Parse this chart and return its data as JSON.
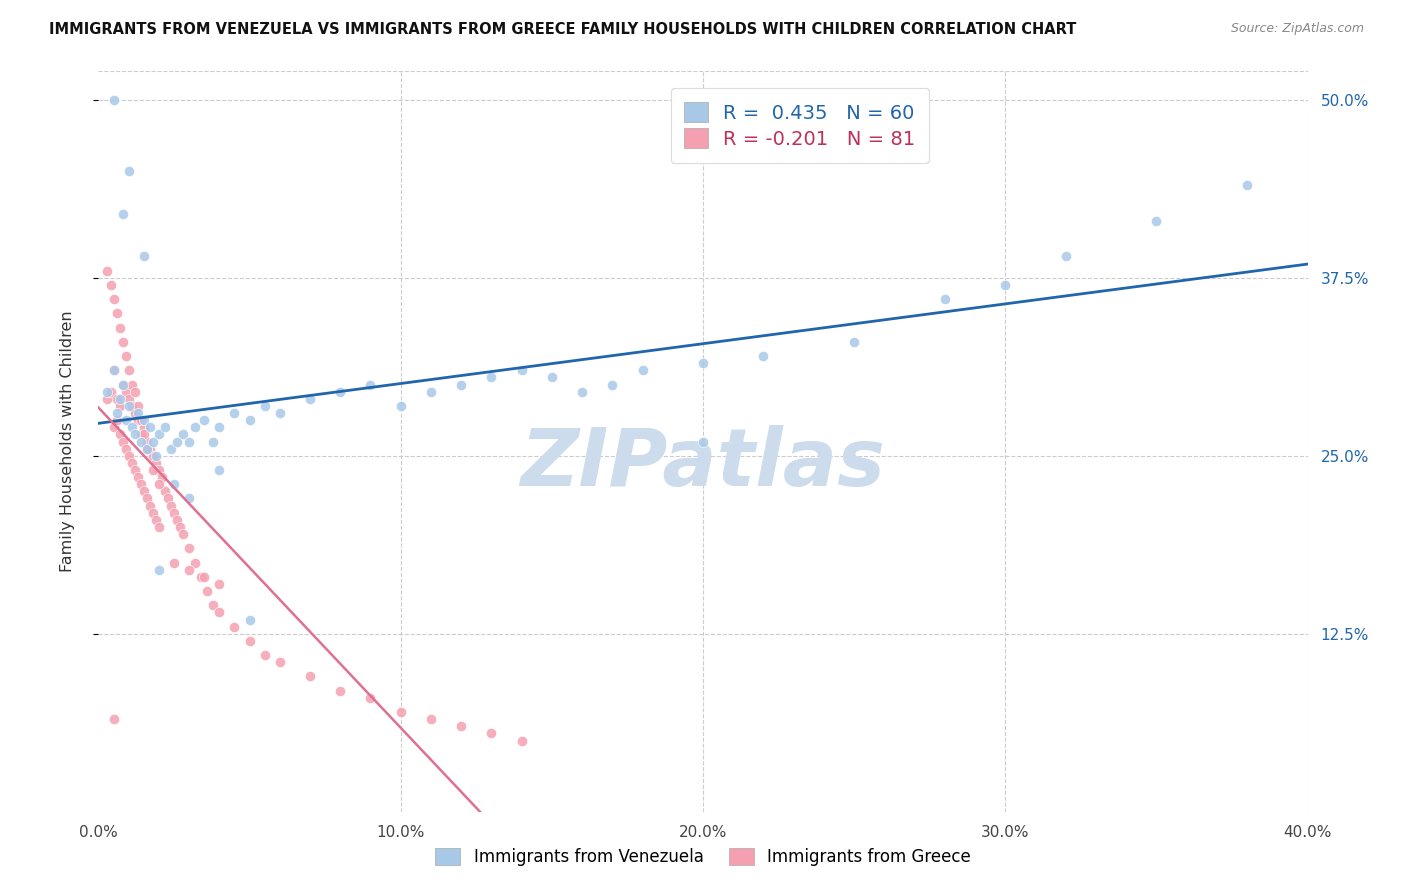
{
  "title": "IMMIGRANTS FROM VENEZUELA VS IMMIGRANTS FROM GREECE FAMILY HOUSEHOLDS WITH CHILDREN CORRELATION CHART",
  "source": "Source: ZipAtlas.com",
  "ylabel": "Family Households with Children",
  "x_ticks": [
    "0.0%",
    "10.0%",
    "20.0%",
    "30.0%",
    "40.0%"
  ],
  "x_tick_vals": [
    0.0,
    0.1,
    0.2,
    0.3,
    0.4
  ],
  "y_ticks_right": [
    "12.5%",
    "25.0%",
    "37.5%",
    "50.0%"
  ],
  "y_tick_vals": [
    0.125,
    0.25,
    0.375,
    0.5
  ],
  "xlim": [
    0.0,
    0.4
  ],
  "ylim": [
    0.0,
    0.52
  ],
  "r_blue": 0.435,
  "n_blue": 60,
  "r_pink": -0.201,
  "n_pink": 81,
  "blue_color": "#a8c8e8",
  "pink_color": "#f4a0b0",
  "trendline_blue_color": "#2166ac",
  "trendline_pink_solid_color": "#e07090",
  "trendline_pink_dash_color": "#f0b8c8",
  "watermark_color": "#ccdcec",
  "watermark_text": "ZIPatlas",
  "venezuela_x": [
    0.003,
    0.005,
    0.006,
    0.007,
    0.008,
    0.009,
    0.01,
    0.011,
    0.012,
    0.013,
    0.014,
    0.015,
    0.016,
    0.017,
    0.018,
    0.019,
    0.02,
    0.022,
    0.024,
    0.026,
    0.028,
    0.03,
    0.032,
    0.035,
    0.038,
    0.04,
    0.045,
    0.05,
    0.055,
    0.06,
    0.07,
    0.08,
    0.09,
    0.1,
    0.11,
    0.12,
    0.13,
    0.14,
    0.15,
    0.16,
    0.17,
    0.18,
    0.2,
    0.22,
    0.25,
    0.28,
    0.3,
    0.32,
    0.35,
    0.38,
    0.005,
    0.008,
    0.01,
    0.015,
    0.02,
    0.025,
    0.03,
    0.04,
    0.05,
    0.2
  ],
  "venezuela_y": [
    0.295,
    0.31,
    0.28,
    0.29,
    0.3,
    0.275,
    0.285,
    0.27,
    0.265,
    0.28,
    0.26,
    0.275,
    0.255,
    0.27,
    0.26,
    0.25,
    0.265,
    0.27,
    0.255,
    0.26,
    0.265,
    0.26,
    0.27,
    0.275,
    0.26,
    0.27,
    0.28,
    0.275,
    0.285,
    0.28,
    0.29,
    0.295,
    0.3,
    0.285,
    0.295,
    0.3,
    0.305,
    0.31,
    0.305,
    0.295,
    0.3,
    0.31,
    0.315,
    0.32,
    0.33,
    0.36,
    0.37,
    0.39,
    0.415,
    0.44,
    0.5,
    0.42,
    0.45,
    0.39,
    0.17,
    0.23,
    0.22,
    0.24,
    0.135,
    0.26
  ],
  "greece_x": [
    0.003,
    0.004,
    0.005,
    0.005,
    0.006,
    0.006,
    0.007,
    0.007,
    0.008,
    0.008,
    0.009,
    0.009,
    0.01,
    0.01,
    0.011,
    0.011,
    0.012,
    0.012,
    0.013,
    0.013,
    0.014,
    0.014,
    0.015,
    0.015,
    0.016,
    0.016,
    0.017,
    0.017,
    0.018,
    0.018,
    0.019,
    0.019,
    0.02,
    0.02,
    0.021,
    0.022,
    0.023,
    0.024,
    0.025,
    0.026,
    0.027,
    0.028,
    0.03,
    0.032,
    0.034,
    0.036,
    0.038,
    0.04,
    0.045,
    0.05,
    0.055,
    0.06,
    0.07,
    0.08,
    0.09,
    0.1,
    0.11,
    0.12,
    0.13,
    0.14,
    0.003,
    0.004,
    0.005,
    0.006,
    0.007,
    0.008,
    0.009,
    0.01,
    0.011,
    0.012,
    0.013,
    0.014,
    0.015,
    0.016,
    0.018,
    0.02,
    0.025,
    0.03,
    0.035,
    0.04,
    0.005
  ],
  "greece_y": [
    0.29,
    0.295,
    0.31,
    0.27,
    0.29,
    0.275,
    0.285,
    0.265,
    0.3,
    0.26,
    0.295,
    0.255,
    0.29,
    0.25,
    0.285,
    0.245,
    0.28,
    0.24,
    0.275,
    0.235,
    0.265,
    0.23,
    0.27,
    0.225,
    0.26,
    0.22,
    0.255,
    0.215,
    0.25,
    0.21,
    0.245,
    0.205,
    0.24,
    0.2,
    0.235,
    0.225,
    0.22,
    0.215,
    0.21,
    0.205,
    0.2,
    0.195,
    0.185,
    0.175,
    0.165,
    0.155,
    0.145,
    0.14,
    0.13,
    0.12,
    0.11,
    0.105,
    0.095,
    0.085,
    0.08,
    0.07,
    0.065,
    0.06,
    0.055,
    0.05,
    0.38,
    0.37,
    0.36,
    0.35,
    0.34,
    0.33,
    0.32,
    0.31,
    0.3,
    0.295,
    0.285,
    0.275,
    0.265,
    0.255,
    0.24,
    0.23,
    0.175,
    0.17,
    0.165,
    0.16,
    0.065
  ]
}
